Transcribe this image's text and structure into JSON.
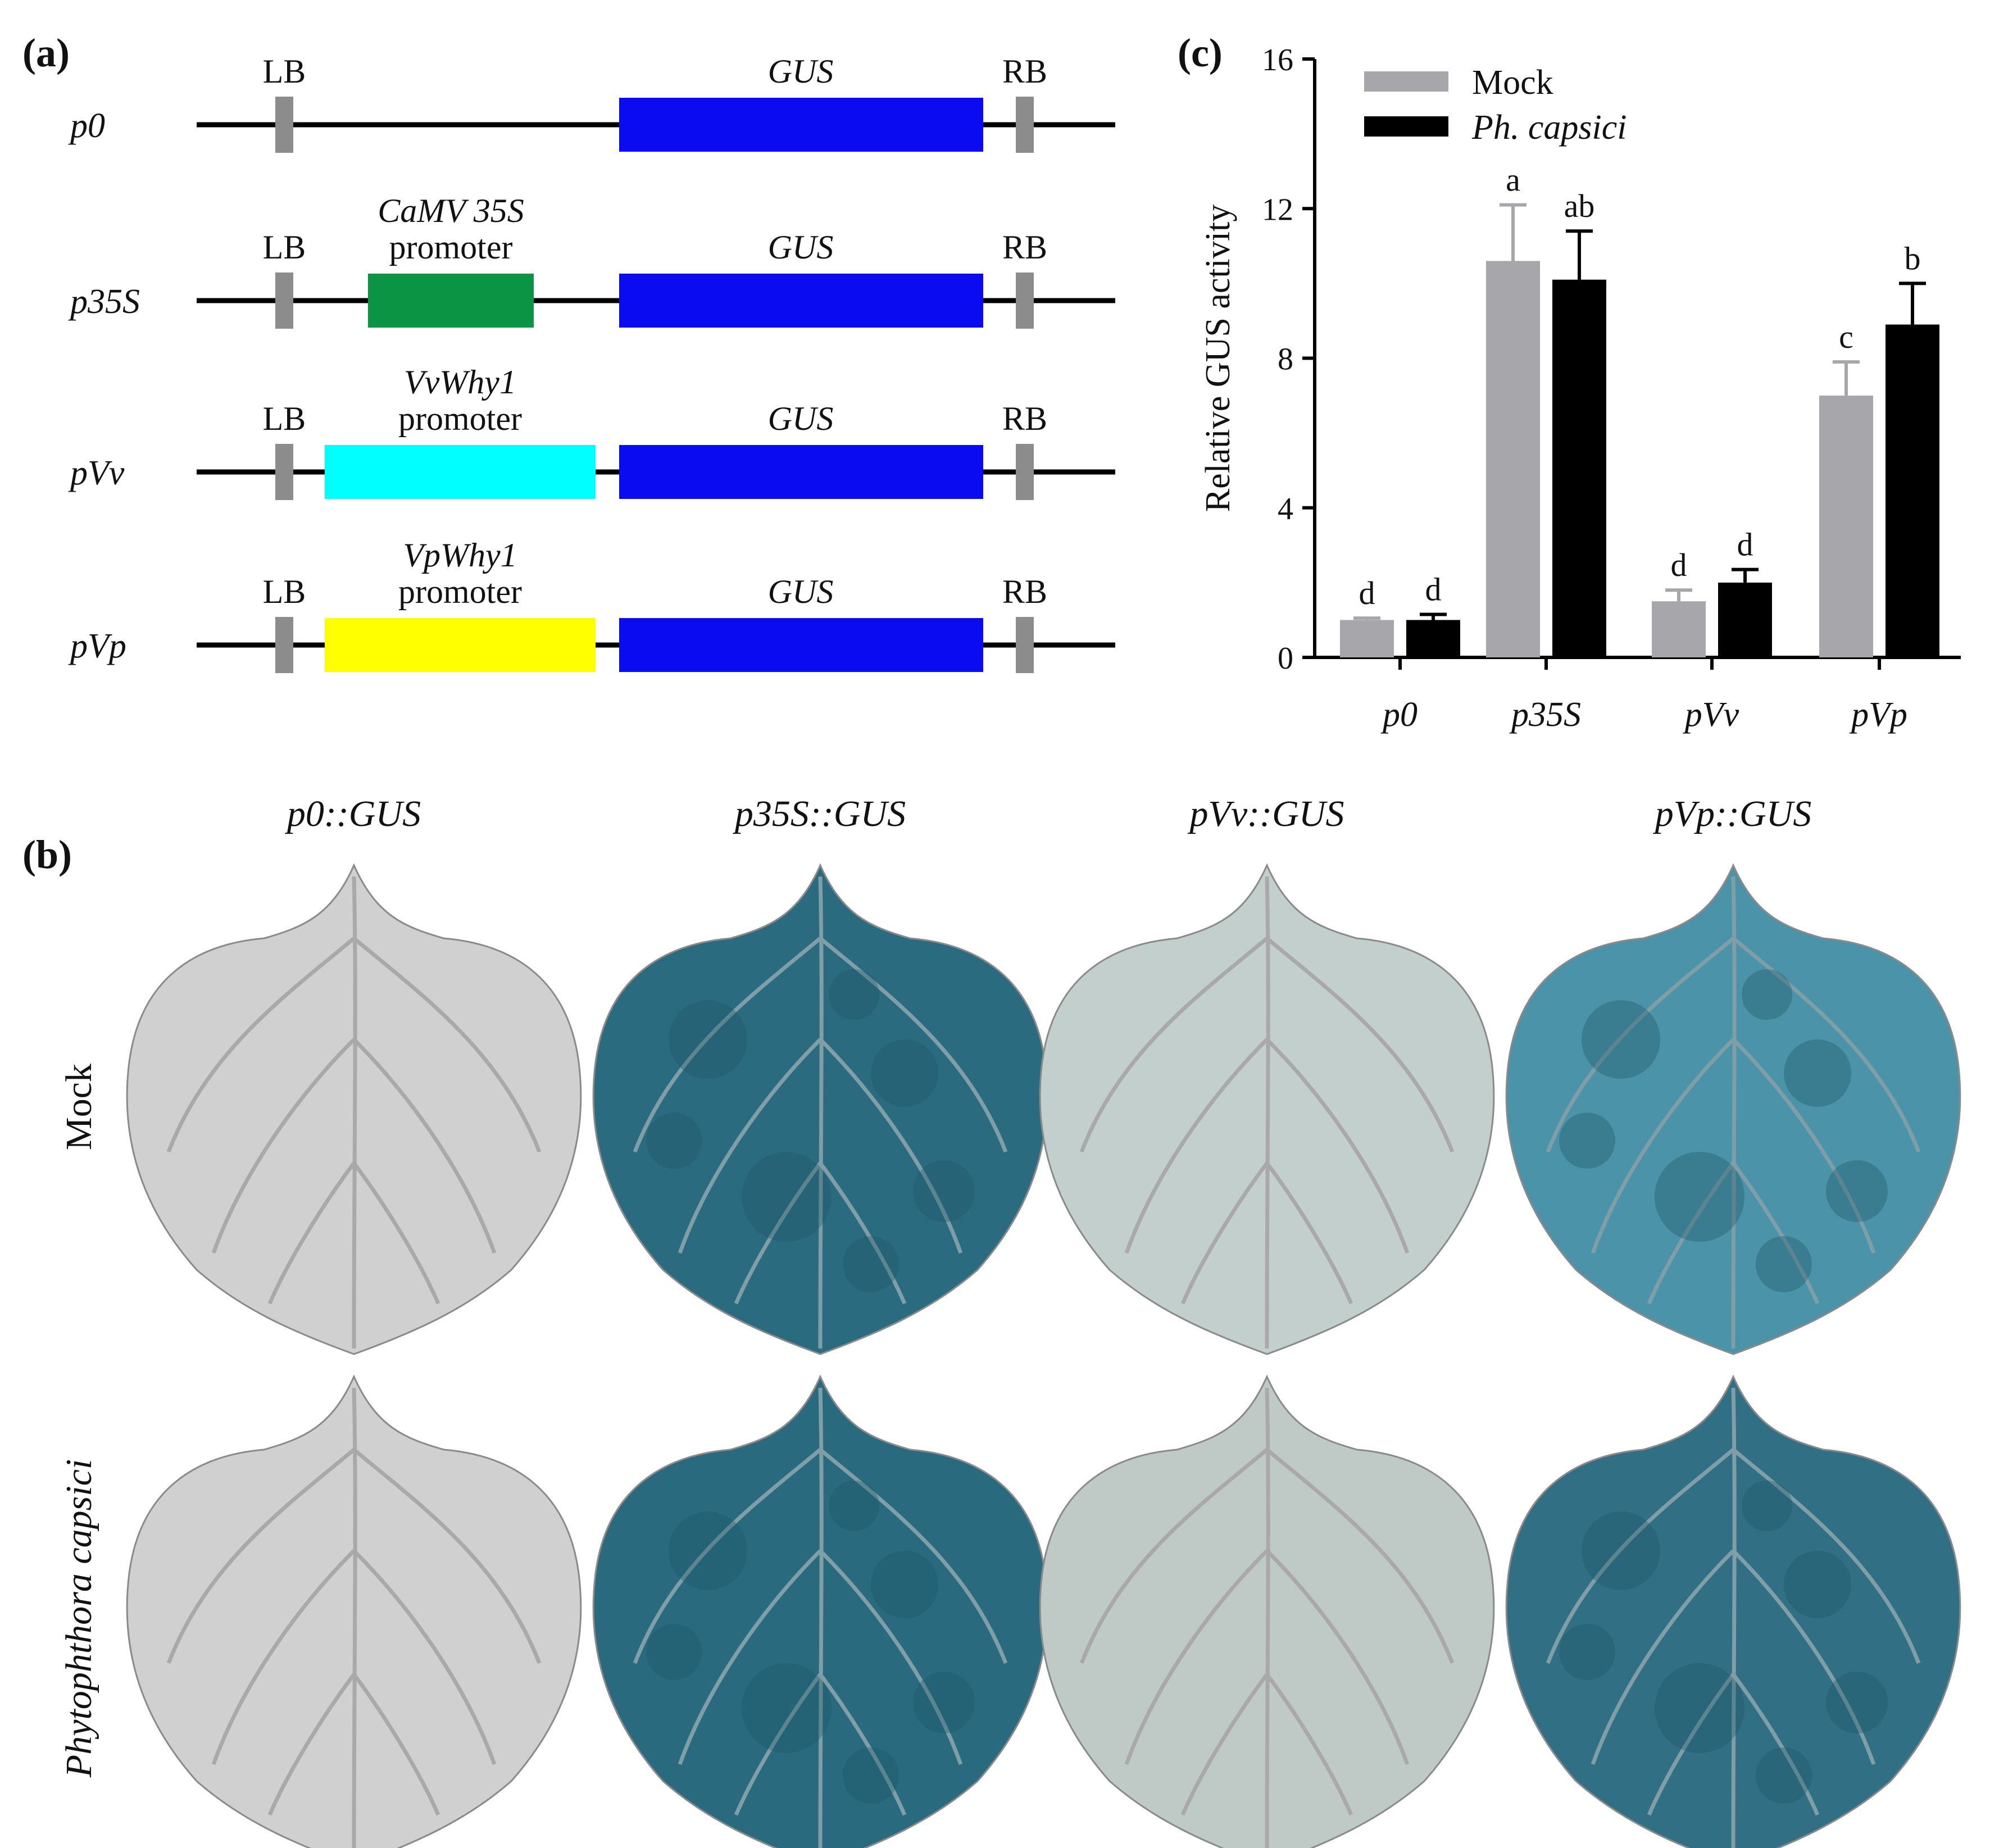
{
  "panel_a": {
    "label": "(a)",
    "lb": "LB",
    "rb": "RB",
    "gus": "GUS",
    "promoter_word": "promoter",
    "constructs": [
      {
        "name": "p0",
        "promoter": "",
        "color": "none"
      },
      {
        "name": "p35S",
        "promoter": "CaMV 35S",
        "color": "#0a9444"
      },
      {
        "name": "pVv",
        "promoter": "VvWhy1",
        "color": "#00ffff"
      },
      {
        "name": "pVp",
        "promoter": "VpWhy1",
        "color": "#ffff00"
      }
    ],
    "colors": {
      "gus": "#0b0bf2",
      "border": "#8c8c8c",
      "line": "#000000"
    }
  },
  "panel_b": {
    "label": "(b)",
    "columns": [
      "p0::GUS",
      "p35S::GUS",
      "pVv::GUS",
      "pVp::GUS"
    ],
    "rows": [
      "Mock",
      "Phytophthora capsici"
    ],
    "leaf_colors": [
      [
        "#cfd0cf",
        "#2b6b80",
        "#c3cfcc",
        "#4a93a8"
      ],
      [
        "#d0d0d0",
        "#296a7e",
        "#bfcac6",
        "#316f84"
      ]
    ]
  },
  "chart_data": {
    "type": "bar",
    "label": "(c)",
    "categories": [
      "p0",
      "p35S",
      "pVv",
      "pVp"
    ],
    "series": [
      {
        "name": "Mock",
        "color": "#a7a7ab",
        "values": [
          1.0,
          10.6,
          1.5,
          7.0
        ],
        "errors": [
          0.05,
          1.5,
          0.3,
          0.9
        ],
        "letters": [
          "d",
          "a",
          "d",
          "c"
        ]
      },
      {
        "name": "Ph. capsici",
        "color": "#000000",
        "values": [
          1.0,
          10.1,
          2.0,
          8.9
        ],
        "errors": [
          0.15,
          1.3,
          0.35,
          1.1
        ],
        "letters": [
          "d",
          "ab",
          "d",
          "b"
        ]
      }
    ],
    "ylabel": "Relative GUS activity",
    "ylim": [
      0,
      16
    ],
    "yticks": [
      0,
      4,
      8,
      12,
      16
    ],
    "legend_position": "top-left"
  }
}
